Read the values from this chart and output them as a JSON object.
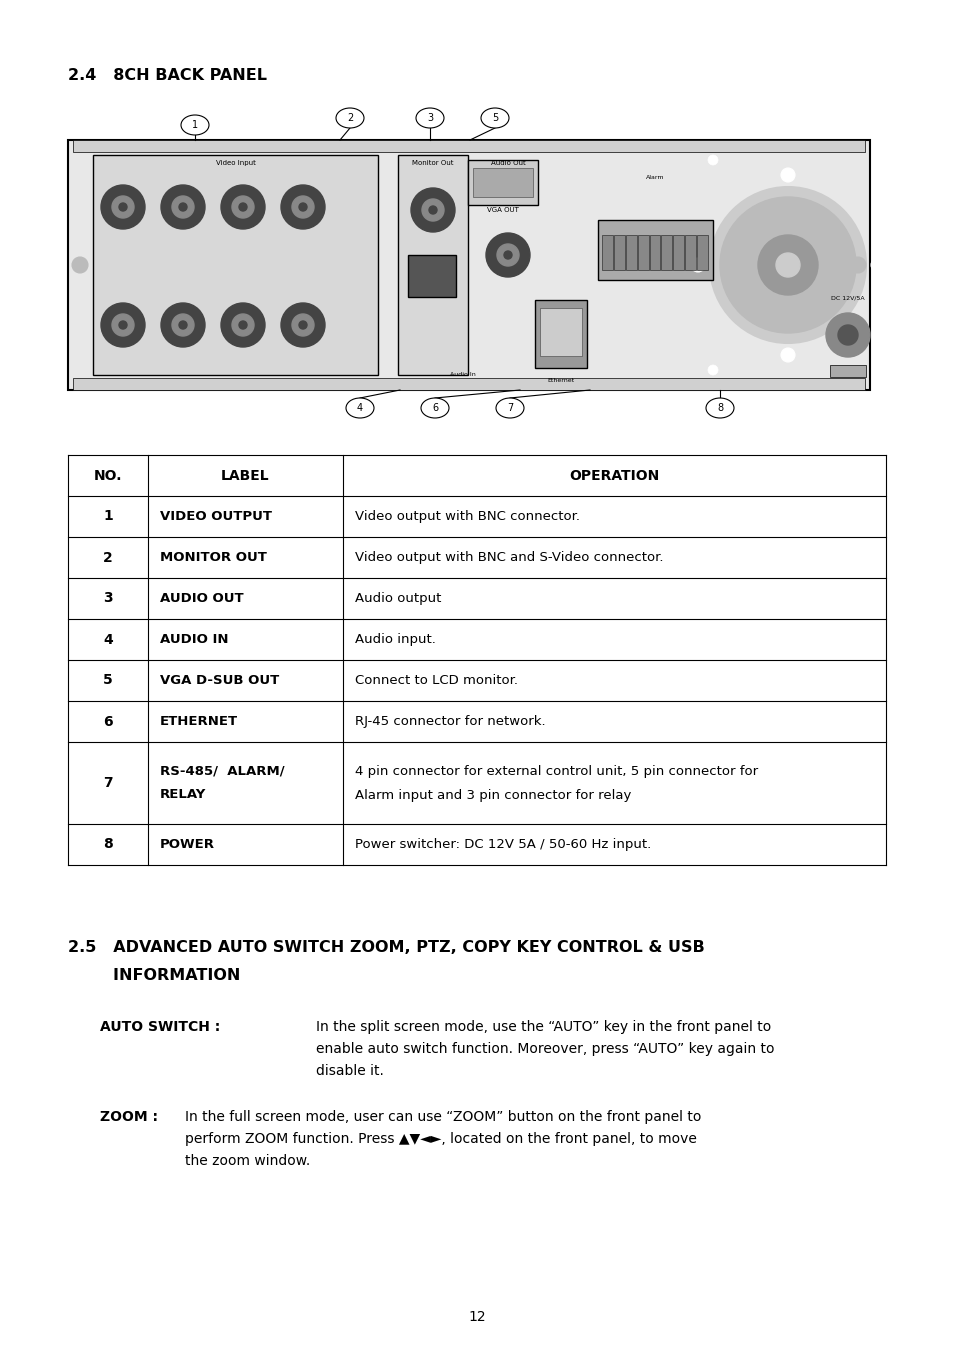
{
  "bg_color": "#ffffff",
  "title_24": "2.4   8CH BACK PANEL",
  "table_headers": [
    "NO.",
    "LABEL",
    "OPERATION"
  ],
  "table_rows": [
    [
      "1",
      "VIDEO OUTPUT",
      "Video output with BNC connector."
    ],
    [
      "2",
      "MONITOR OUT",
      "Video output with BNC and S-Video connector."
    ],
    [
      "3",
      "AUDIO OUT",
      "Audio output"
    ],
    [
      "4",
      "AUDIO IN",
      "Audio input."
    ],
    [
      "5",
      "VGA D-SUB OUT",
      "Connect to LCD monitor."
    ],
    [
      "6",
      "ETHERNET",
      "RJ-45 connector for network."
    ],
    [
      "7",
      "RS-485/  ALARM/\nRELAY",
      "4 pin connector for external control unit, 5 pin connector for\nAlarm input and 3 pin connector for relay"
    ],
    [
      "8",
      "POWER",
      "Power switcher: DC 12V 5A / 50-60 Hz input."
    ]
  ],
  "section25_line1": "2.5   ADVANCED AUTO SWITCH ZOOM, PTZ, COPY KEY CONTROL & USB",
  "section25_line2": "        INFORMATION",
  "page_number": "12"
}
